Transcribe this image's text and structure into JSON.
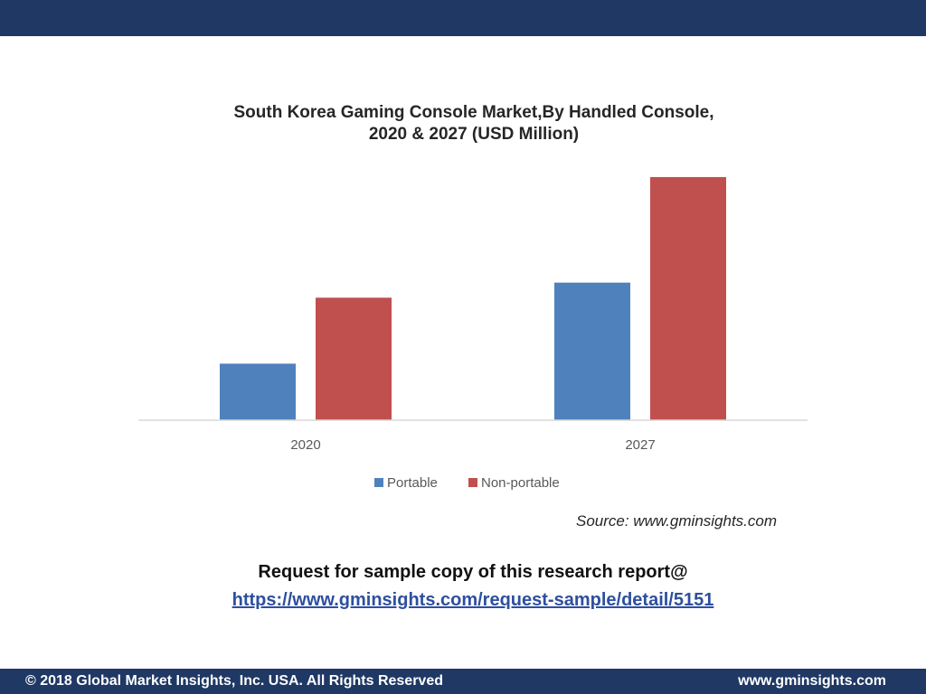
{
  "chart_data": {
    "type": "bar",
    "title_line1": "South Korea Gaming Console  Market,By Handled Console,",
    "title_line2": "2020 & 2027 (USD Million)",
    "categories": [
      "2020",
      "2027"
    ],
    "series": [
      {
        "name": "Portable",
        "color": "#4f81bd",
        "values": [
          60,
          146
        ]
      },
      {
        "name": "Non-portable",
        "color": "#c0504d",
        "values": [
          130,
          258
        ]
      }
    ],
    "ylim": [
      0,
      280
    ],
    "grid": false,
    "legend_position": "bottom"
  },
  "source": "Source: www.gminsights.com",
  "cta": {
    "text": "Request for sample copy of this research report@",
    "link": "https://www.gminsights.com/request-sample/detail/5151"
  },
  "footer": {
    "copyright": "© 2018 Global Market Insights, Inc. USA. All Rights Reserved",
    "website": "www.gminsights.com"
  },
  "colors": {
    "brand_navy": "#1f3864",
    "link_blue": "#2e4f9e"
  }
}
